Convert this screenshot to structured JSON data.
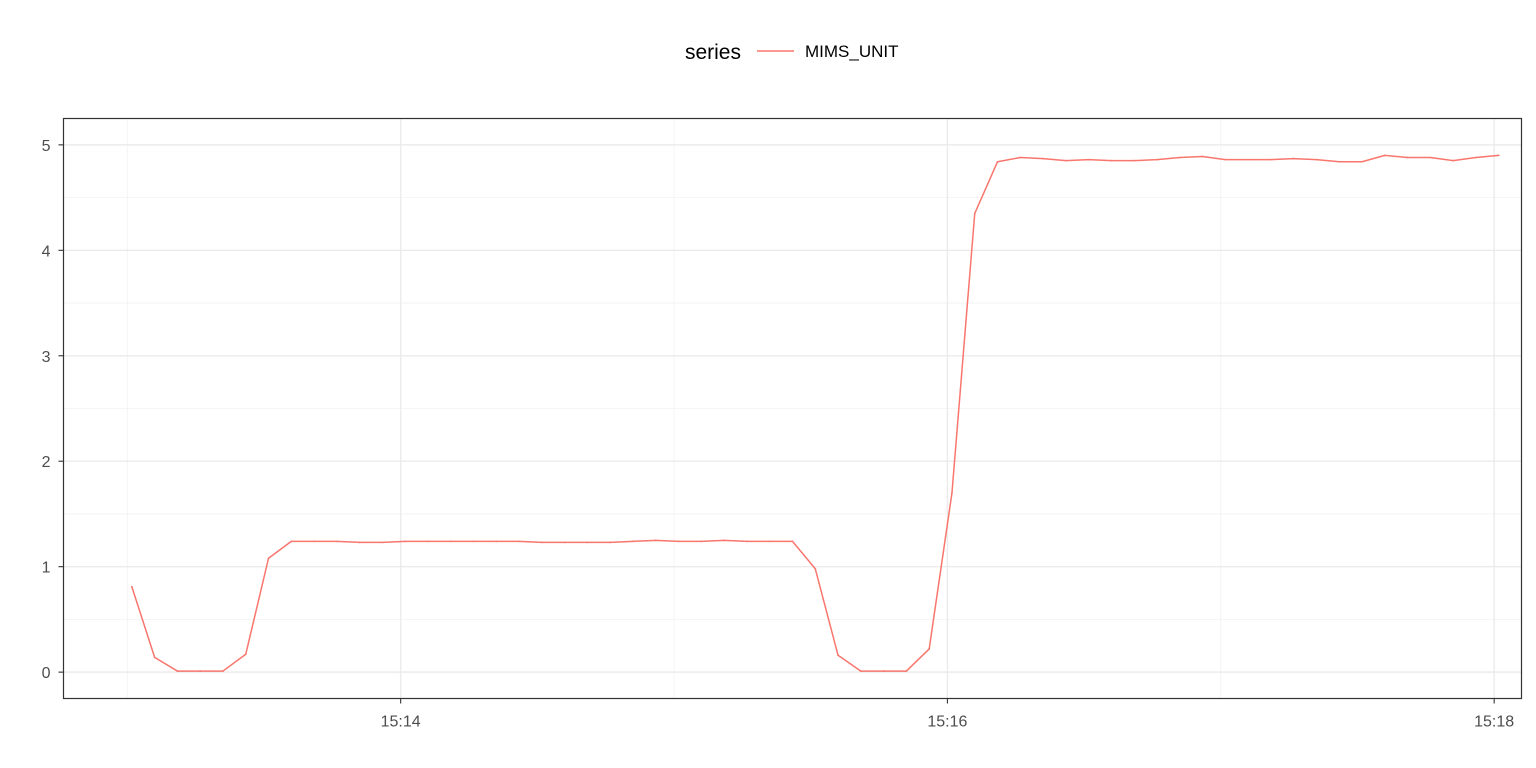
{
  "chart_data": {
    "type": "line",
    "legend": {
      "title": "series",
      "position": "top"
    },
    "x_unit": "time (HH:MM:SS)",
    "x_ticks": [
      "15:14",
      "15:16",
      "15:18"
    ],
    "xlim": [
      "15:12:46",
      "15:18:06"
    ],
    "y_ticks": [
      "0",
      "1",
      "2",
      "3",
      "4",
      "5"
    ],
    "ylim": [
      -0.25,
      5.25
    ],
    "grid": true,
    "series": [
      {
        "name": "MIMS_UNIT",
        "color": "#F8766D",
        "points": [
          [
            "15:13:01",
            0.81
          ],
          [
            "15:13:06",
            0.14
          ],
          [
            "15:13:11",
            0.01
          ],
          [
            "15:13:16",
            0.01
          ],
          [
            "15:13:21",
            0.01
          ],
          [
            "15:13:26",
            0.17
          ],
          [
            "15:13:31",
            1.08
          ],
          [
            "15:13:36",
            1.24
          ],
          [
            "15:13:41",
            1.24
          ],
          [
            "15:13:46",
            1.24
          ],
          [
            "15:13:51",
            1.23
          ],
          [
            "15:13:56",
            1.23
          ],
          [
            "15:14:01",
            1.24
          ],
          [
            "15:14:06",
            1.24
          ],
          [
            "15:14:11",
            1.24
          ],
          [
            "15:14:16",
            1.24
          ],
          [
            "15:14:21",
            1.24
          ],
          [
            "15:14:26",
            1.24
          ],
          [
            "15:14:31",
            1.23
          ],
          [
            "15:14:36",
            1.23
          ],
          [
            "15:14:41",
            1.23
          ],
          [
            "15:14:46",
            1.23
          ],
          [
            "15:14:51",
            1.24
          ],
          [
            "15:14:56",
            1.25
          ],
          [
            "15:15:01",
            1.24
          ],
          [
            "15:15:06",
            1.24
          ],
          [
            "15:15:11",
            1.25
          ],
          [
            "15:15:16",
            1.24
          ],
          [
            "15:15:21",
            1.24
          ],
          [
            "15:15:26",
            1.24
          ],
          [
            "15:15:31",
            0.98
          ],
          [
            "15:15:36",
            0.16
          ],
          [
            "15:15:41",
            0.01
          ],
          [
            "15:15:46",
            0.01
          ],
          [
            "15:15:51",
            0.01
          ],
          [
            "15:15:56",
            0.22
          ],
          [
            "15:16:01",
            1.7
          ],
          [
            "15:16:06",
            4.35
          ],
          [
            "15:16:11",
            4.84
          ],
          [
            "15:16:16",
            4.88
          ],
          [
            "15:16:21",
            4.87
          ],
          [
            "15:16:26",
            4.85
          ],
          [
            "15:16:31",
            4.86
          ],
          [
            "15:16:36",
            4.85
          ],
          [
            "15:16:41",
            4.85
          ],
          [
            "15:16:46",
            4.86
          ],
          [
            "15:16:51",
            4.88
          ],
          [
            "15:16:56",
            4.89
          ],
          [
            "15:17:01",
            4.86
          ],
          [
            "15:17:06",
            4.86
          ],
          [
            "15:17:11",
            4.86
          ],
          [
            "15:17:16",
            4.87
          ],
          [
            "15:17:21",
            4.86
          ],
          [
            "15:17:26",
            4.84
          ],
          [
            "15:17:31",
            4.84
          ],
          [
            "15:17:36",
            4.9
          ],
          [
            "15:17:41",
            4.88
          ],
          [
            "15:17:46",
            4.88
          ],
          [
            "15:17:51",
            4.85
          ],
          [
            "15:17:56",
            4.88
          ],
          [
            "15:18:01",
            4.9
          ]
        ]
      }
    ]
  }
}
